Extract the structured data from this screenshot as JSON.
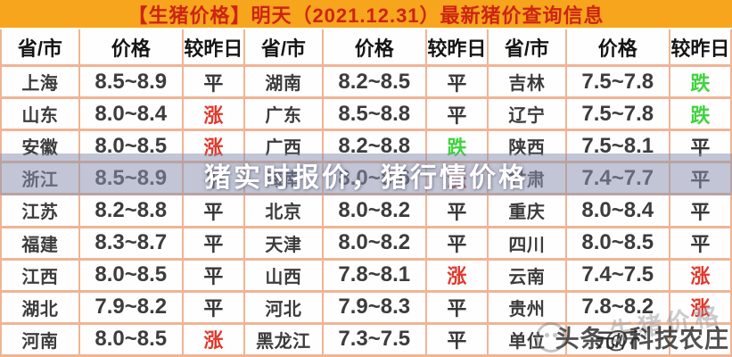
{
  "title": "【生猪价格】明天（2021.12.31）最新猪价查询信息",
  "watermarks": {
    "center": "猪实时报价，猪行情价格",
    "corner_faint": "生猪价格",
    "corner_credit": "头条@科技农庄"
  },
  "colors": {
    "title_bg": "#f7a51c",
    "title_text": "#cd2413",
    "border": "#f0b494",
    "up": "#e2372b",
    "down": "#3ed43e",
    "flat": "#363636",
    "band": "rgba(137,146,176,0.53)"
  },
  "chart_data": {
    "type": "table",
    "title": "【生猪价格】明天（2021.12.31）最新猪价查询信息",
    "columns": [
      "省/市",
      "价格",
      "较昨日"
    ],
    "unit_row": {
      "label": "单位",
      "value": "元/斤"
    },
    "status_legend": {
      "up": "涨",
      "flat": "平",
      "down": "跌"
    },
    "groups": [
      [
        {
          "region": "上海",
          "price": "8.5~8.9",
          "status": "平",
          "trend": "flat"
        },
        {
          "region": "山东",
          "price": "8.0~8.4",
          "status": "涨",
          "trend": "up"
        },
        {
          "region": "安徽",
          "price": "8.0~8.5",
          "status": "涨",
          "trend": "up"
        },
        {
          "region": "浙江",
          "price": "8.5~8.9",
          "status": "平",
          "trend": "flat"
        },
        {
          "region": "江苏",
          "price": "8.2~8.8",
          "status": "平",
          "trend": "flat"
        },
        {
          "region": "福建",
          "price": "8.3~8.7",
          "status": "平",
          "trend": "flat"
        },
        {
          "region": "江西",
          "price": "8.0~8.5",
          "status": "平",
          "trend": "flat"
        },
        {
          "region": "湖北",
          "price": "7.9~8.2",
          "status": "平",
          "trend": "flat"
        },
        {
          "region": "河南",
          "price": "8.0~8.5",
          "status": "涨",
          "trend": "up"
        }
      ],
      [
        {
          "region": "湖南",
          "price": "8.2~8.5",
          "status": "平",
          "trend": "flat"
        },
        {
          "region": "广东",
          "price": "8.5~8.8",
          "status": "平",
          "trend": "flat"
        },
        {
          "region": "广西",
          "price": "8.2~8.8",
          "status": "跌",
          "trend": "down"
        },
        {
          "region": "海南",
          "price": "8.0~8.6",
          "status": "涨",
          "trend": "up"
        },
        {
          "region": "北京",
          "price": "8.0~8.2",
          "status": "平",
          "trend": "flat"
        },
        {
          "region": "天津",
          "price": "8.0~8.2",
          "status": "平",
          "trend": "flat"
        },
        {
          "region": "山西",
          "price": "7.8~8.1",
          "status": "涨",
          "trend": "up"
        },
        {
          "region": "河北",
          "price": "7.9~8.3",
          "status": "平",
          "trend": "flat"
        },
        {
          "region": "黑龙江",
          "price": "7.3~7.5",
          "status": "平",
          "trend": "flat"
        }
      ],
      [
        {
          "region": "吉林",
          "price": "7.5~7.8",
          "status": "跌",
          "trend": "down"
        },
        {
          "region": "辽宁",
          "price": "7.5~7.8",
          "status": "跌",
          "trend": "down"
        },
        {
          "region": "陕西",
          "price": "7.5~8.1",
          "status": "平",
          "trend": "flat"
        },
        {
          "region": "甘肃",
          "price": "7.4~7.7",
          "status": "平",
          "trend": "flat"
        },
        {
          "region": "重庆",
          "price": "8.0~8.4",
          "status": "平",
          "trend": "flat"
        },
        {
          "region": "四川",
          "price": "8.0~8.5",
          "status": "平",
          "trend": "flat"
        },
        {
          "region": "云南",
          "price": "7.4~7.5",
          "status": "涨",
          "trend": "up"
        },
        {
          "region": "贵州",
          "price": "7.8~8.2",
          "status": "涨",
          "trend": "up"
        },
        {
          "region": "单位",
          "price": "元/斤",
          "status": "",
          "trend": "unit"
        }
      ]
    ]
  }
}
